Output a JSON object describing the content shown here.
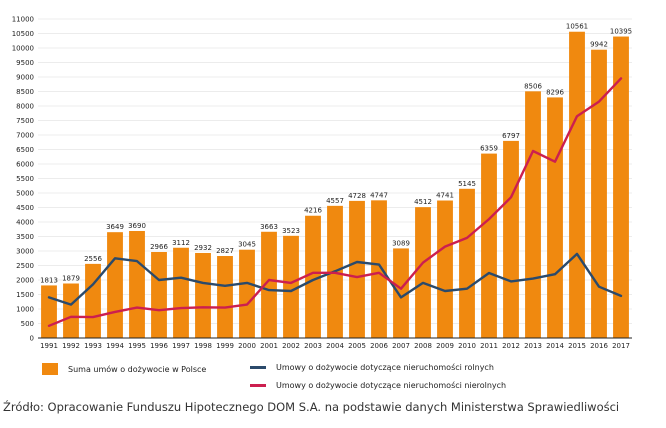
{
  "chart_data": {
    "type": "bar",
    "categories": [
      "1991",
      "1992",
      "1993",
      "1994",
      "1995",
      "1996",
      "1997",
      "1998",
      "1999",
      "2000",
      "2001",
      "2002",
      "2003",
      "2004",
      "2005",
      "2006",
      "2007",
      "2008",
      "2009",
      "2010",
      "2011",
      "2012",
      "2013",
      "2014",
      "2015",
      "2016",
      "2017"
    ],
    "ylim": [
      0,
      11000
    ],
    "yticks": [
      0,
      500,
      1000,
      1500,
      2000,
      2500,
      3000,
      3500,
      4000,
      4500,
      5000,
      5500,
      6000,
      6500,
      7000,
      7500,
      8000,
      8500,
      9000,
      9500,
      10000,
      10500,
      11000
    ],
    "grid": true,
    "legend_position": "bottom",
    "series": [
      {
        "name": "Suma umów o dożywocie w Polsce",
        "type": "bar",
        "color": "#f0890f",
        "values": [
          1813,
          1879,
          2556,
          3649,
          3690,
          2966,
          3112,
          2932,
          2827,
          3045,
          3663,
          3523,
          4216,
          4557,
          4728,
          4747,
          3089,
          4512,
          4741,
          5145,
          6359,
          6797,
          8506,
          8296,
          10561,
          9942,
          10395
        ]
      },
      {
        "name": "Umowy o dożywocie dotyczące nieruchomości rolnych",
        "type": "line",
        "color": "#2b4a6b",
        "values": [
          1400,
          1150,
          1850,
          2750,
          2650,
          2000,
          2080,
          1900,
          1800,
          1900,
          1650,
          1620,
          2000,
          2300,
          2620,
          2530,
          1400,
          1900,
          1620,
          1700,
          2240,
          1950,
          2050,
          2200,
          2900,
          1770,
          1450
        ]
      },
      {
        "name": "Umowy o dożywocie dotyczące nieruchomości nierolnych",
        "type": "line",
        "color": "#cc1f4f",
        "values": [
          420,
          730,
          720,
          900,
          1050,
          960,
          1030,
          1060,
          1050,
          1150,
          2000,
          1900,
          2250,
          2250,
          2100,
          2250,
          1700,
          2600,
          3150,
          3450,
          4100,
          4850,
          6450,
          6080,
          7650,
          8150,
          8950
        ]
      }
    ]
  },
  "source": "Źródło: Opracowanie Funduszu Hipotecznego DOM S.A. na podstawie danych Ministerstwa Sprawiedliwości"
}
